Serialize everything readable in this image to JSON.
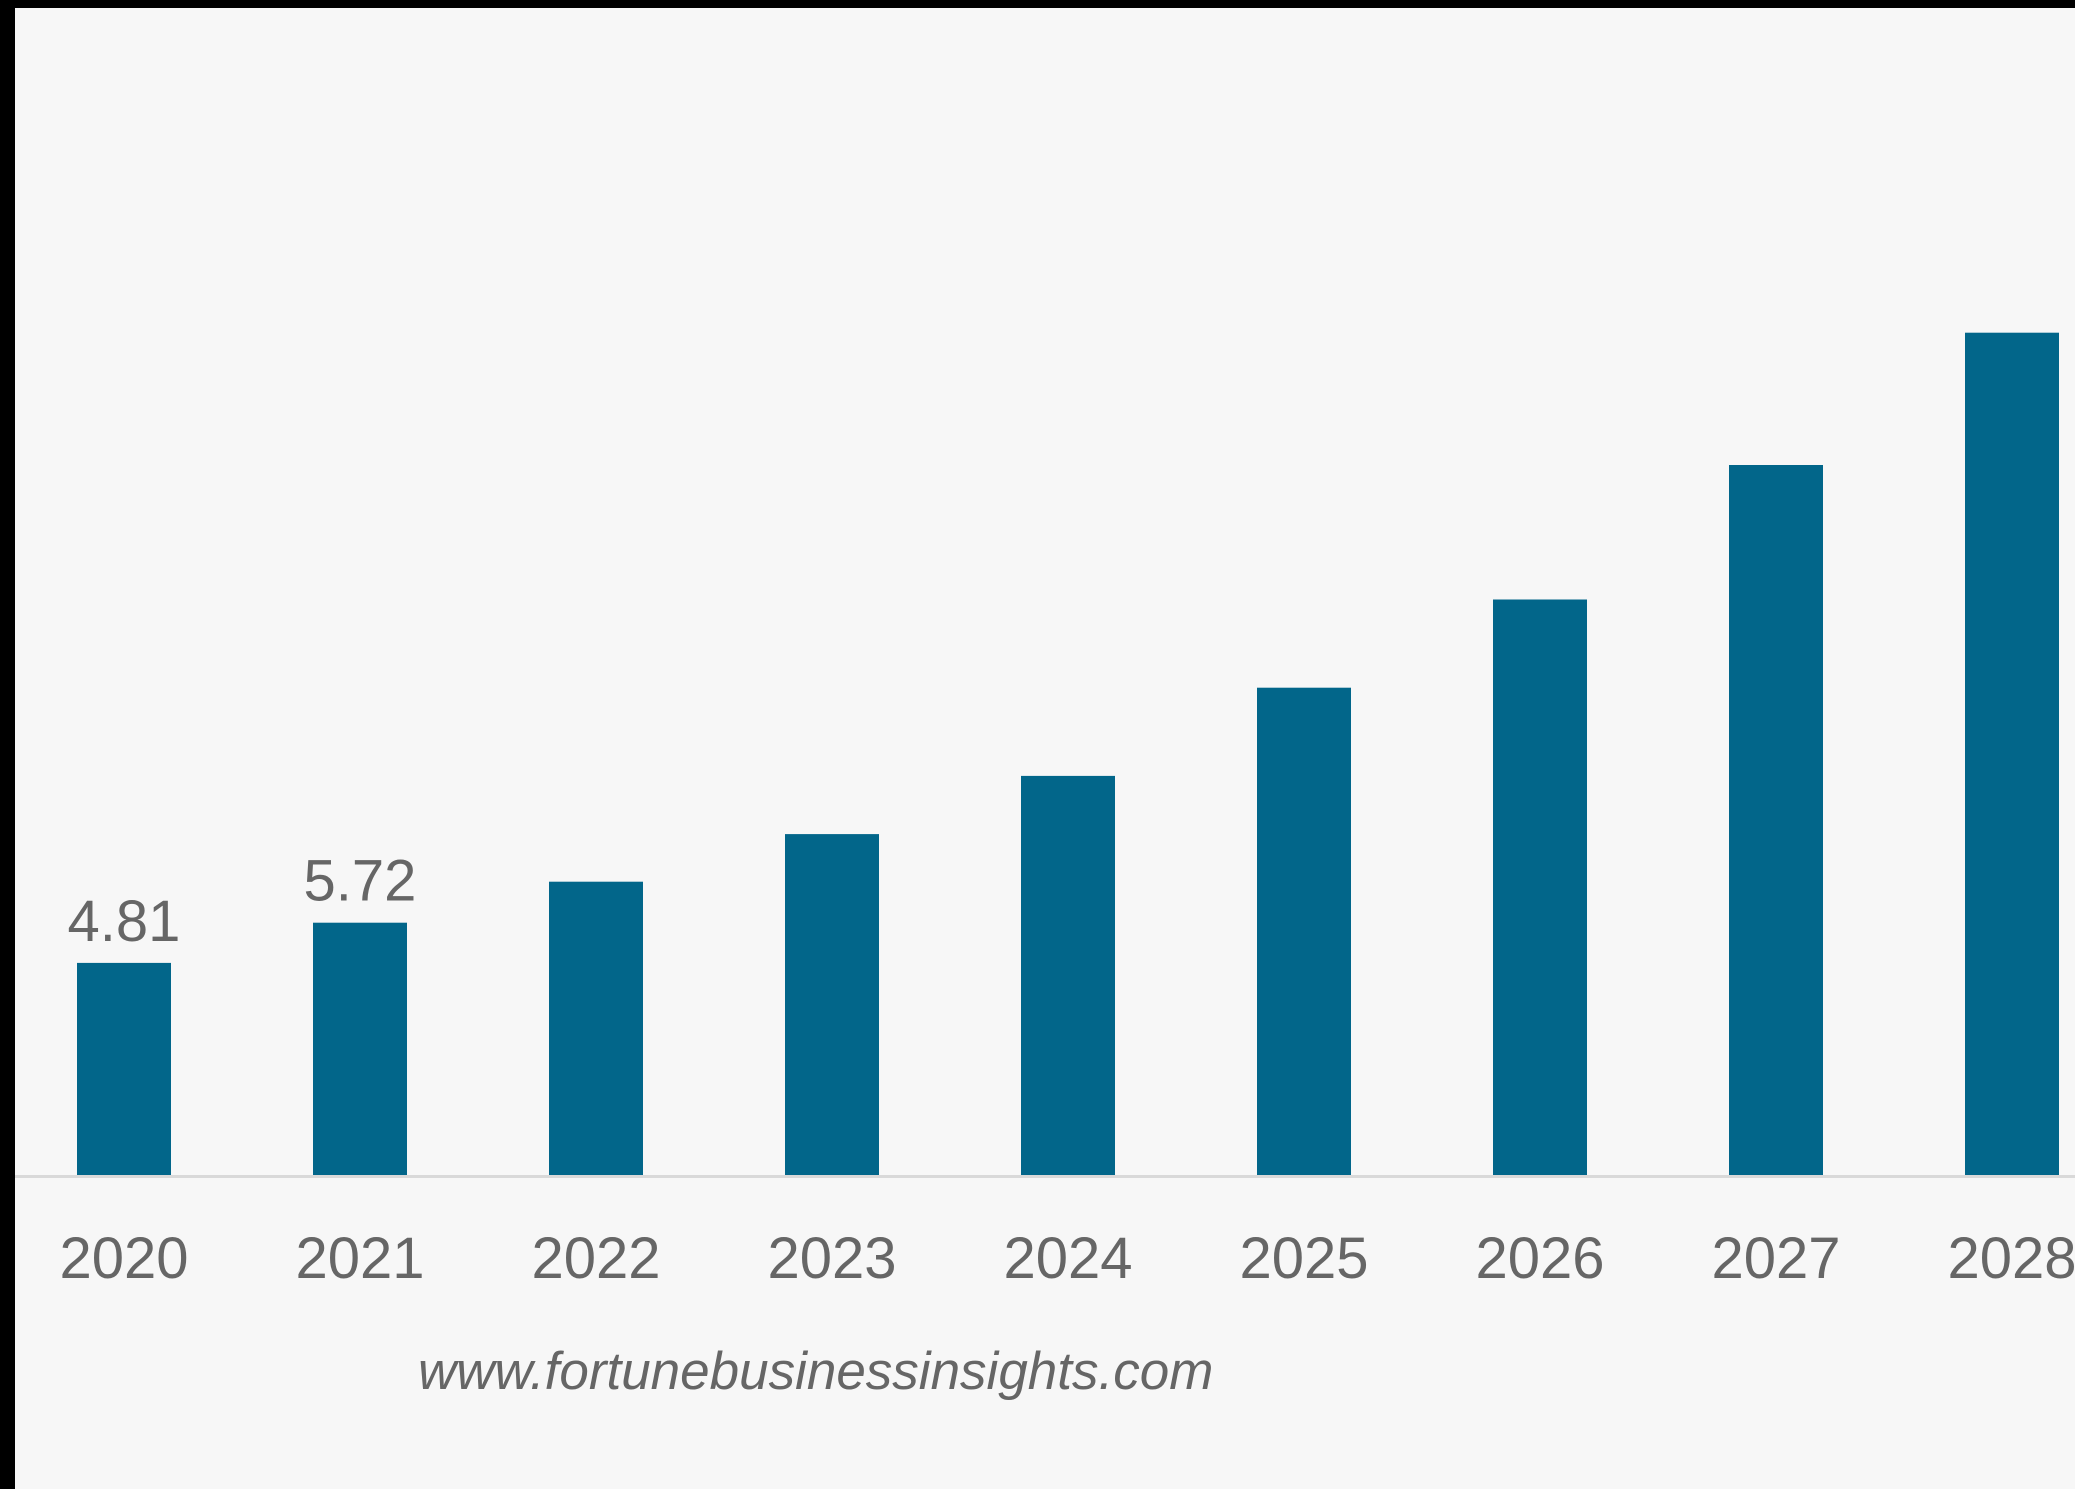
{
  "colors": {
    "bar": "#02668a",
    "axis": "#d9d9d9",
    "background": "#f7f7f7",
    "text": "#666666"
  },
  "source": "www.fortunebusinessinsights.com",
  "chart_data": {
    "type": "bar",
    "categories": [
      "2020",
      "2021",
      "2022",
      "2023",
      "2024",
      "2025",
      "2026",
      "2027",
      "2028"
    ],
    "values": [
      4.81,
      5.72,
      6.65,
      7.73,
      9.05,
      11.05,
      13.05,
      16.1,
      19.1
    ],
    "data_labels": [
      "4.81",
      "5.72",
      "",
      "",
      "",
      "",
      "",
      "",
      ""
    ],
    "ylim": [
      0,
      22
    ],
    "grid": false,
    "legend": "none"
  }
}
